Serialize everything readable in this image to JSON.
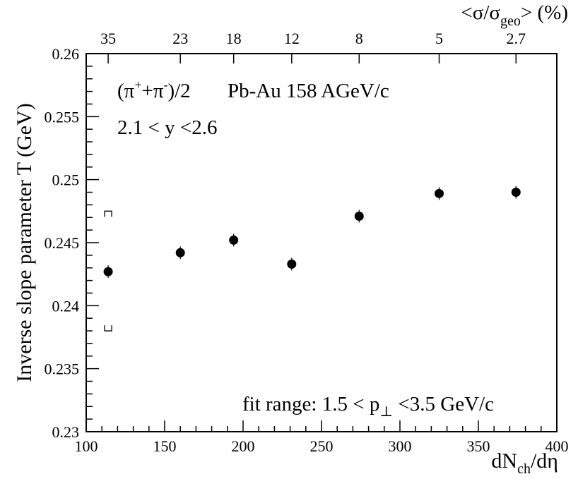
{
  "chart_data": {
    "type": "scatter",
    "xlabel": "dN",
    "xlabel_sub": "ch",
    "xlabel_tail": "/dη",
    "ylabel": "Inverse slope parameter  T (GeV)",
    "top_axis_label": {
      "open": "<σ/σ",
      "sub": "geo",
      "close": "> (%)"
    },
    "xlim": [
      100,
      400
    ],
    "ylim": [
      0.23,
      0.26
    ],
    "xticks": [
      100,
      150,
      200,
      250,
      300,
      350,
      400
    ],
    "xtick_labels": [
      "100",
      "150",
      "200",
      "250",
      "300",
      "350",
      "400"
    ],
    "yticks": [
      0.23,
      0.235,
      0.24,
      0.245,
      0.25,
      0.255,
      0.26
    ],
    "ytick_labels": [
      "0.23",
      "0.235",
      "0.24",
      "0.245",
      "0.25",
      "0.255",
      "0.26"
    ],
    "top_ticks": [
      {
        "x": 114,
        "label": "35"
      },
      {
        "x": 160,
        "label": "23"
      },
      {
        "x": 194,
        "label": "18"
      },
      {
        "x": 231,
        "label": "12"
      },
      {
        "x": 274,
        "label": "8"
      },
      {
        "x": 325,
        "label": "5"
      },
      {
        "x": 374,
        "label": "2.7"
      }
    ],
    "points": [
      {
        "x": 114,
        "y": 0.2427
      },
      {
        "x": 160,
        "y": 0.2442
      },
      {
        "x": 194,
        "y": 0.2452
      },
      {
        "x": 231,
        "y": 0.2433
      },
      {
        "x": 274,
        "y": 0.2471
      },
      {
        "x": 325,
        "y": 0.2489
      },
      {
        "x": 374,
        "y": 0.249
      }
    ],
    "systematic_error": {
      "x": 114,
      "y_low": 0.238,
      "y_high": 0.2475
    },
    "annotations": {
      "particle_open": "(π",
      "particle_sup1": "+",
      "particle_mid": "+π",
      "particle_sup2": "-",
      "particle_close": ")/2",
      "system": "Pb-Au 158 AGeV/c",
      "rapidity": "2.1 < y <2.6",
      "fit_range_head": "fit range: 1.5 < p",
      "fit_range_sub": "⊥",
      "fit_range_tail": " <3.5 GeV/c"
    },
    "grid": false
  }
}
